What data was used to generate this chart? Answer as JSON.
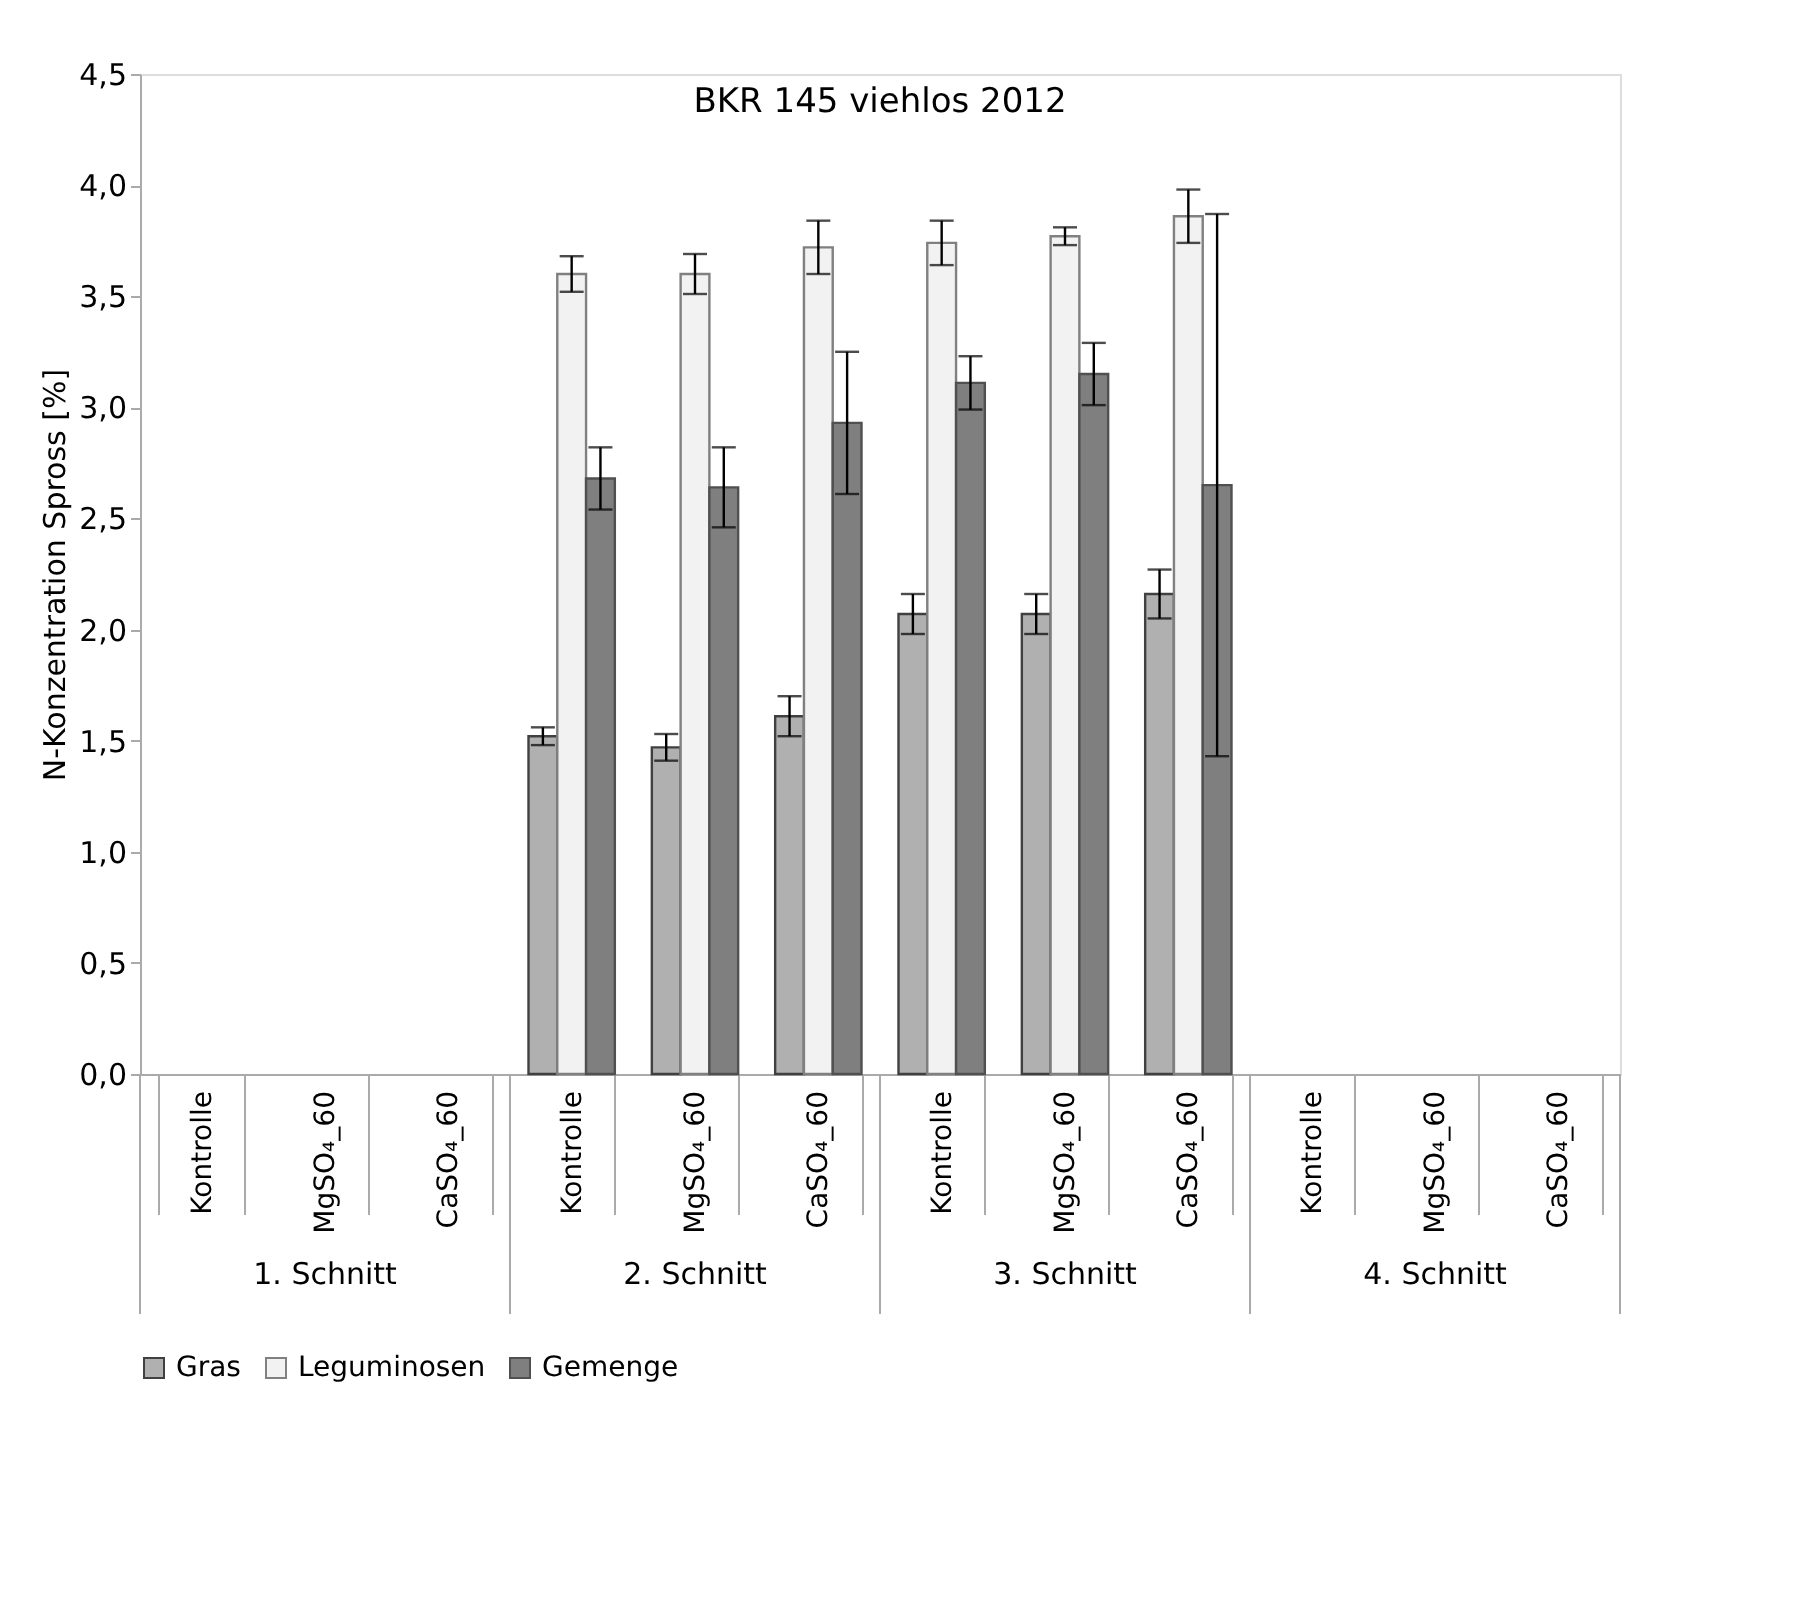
{
  "chart_data": {
    "type": "bar",
    "title": "BKR 145 viehlos 2012",
    "ylabel": "N-Konzentration Spross [%]",
    "categories": [
      "Kontrolle",
      "MgSO₄_60",
      "CaSO₄_60",
      "Kontrolle",
      "MgSO₄_60",
      "CaSO₄_60",
      "Kontrolle",
      "MgSO₄_60",
      "CaSO₄_60",
      "Kontrolle",
      "MgSO₄_60",
      "CaSO₄_60"
    ],
    "annotations": [
      "1. Schnitt",
      "2. Schnitt",
      "3. Schnitt",
      "4. Schnitt"
    ],
    "series": [
      {
        "name": "Gras",
        "color": "#b0b0b0",
        "values": [
          null,
          null,
          null,
          1.52,
          1.47,
          1.61,
          2.07,
          2.07,
          2.16,
          null,
          null,
          null
        ],
        "errors": [
          null,
          null,
          null,
          0.04,
          0.06,
          0.09,
          0.09,
          0.09,
          0.11,
          null,
          null,
          null
        ]
      },
      {
        "name": "Leguminosen",
        "color": "#f2f2f2",
        "values": [
          null,
          null,
          null,
          3.6,
          3.6,
          3.72,
          3.74,
          3.77,
          3.86,
          null,
          null,
          null
        ],
        "errors": [
          null,
          null,
          null,
          0.08,
          0.09,
          0.12,
          0.1,
          0.04,
          0.12,
          null,
          null,
          null
        ]
      },
      {
        "name": "Gemenge",
        "color": "#7f7f7f",
        "values": [
          null,
          null,
          null,
          2.68,
          2.64,
          2.93,
          3.11,
          3.15,
          2.65,
          null,
          null,
          null
        ],
        "errors": [
          null,
          null,
          null,
          0.14,
          0.18,
          0.32,
          0.12,
          0.14,
          1.22,
          null,
          null,
          null
        ]
      }
    ],
    "ylim": [
      0,
      4.5
    ],
    "yticks": [
      {
        "value": 0,
        "label": "0,0"
      },
      {
        "value": 0.5,
        "label": "0,5"
      },
      {
        "value": 1,
        "label": "1,0"
      },
      {
        "value": 1.5,
        "label": "1,5"
      },
      {
        "value": 2,
        "label": "2,0"
      },
      {
        "value": 2.5,
        "label": "2,5"
      },
      {
        "value": 3,
        "label": "3,0"
      },
      {
        "value": 3.5,
        "label": "3,5"
      },
      {
        "value": 4,
        "label": "4,0"
      },
      {
        "value": 4.5,
        "label": "4,5"
      }
    ],
    "grid": false,
    "legend": "bottom"
  }
}
